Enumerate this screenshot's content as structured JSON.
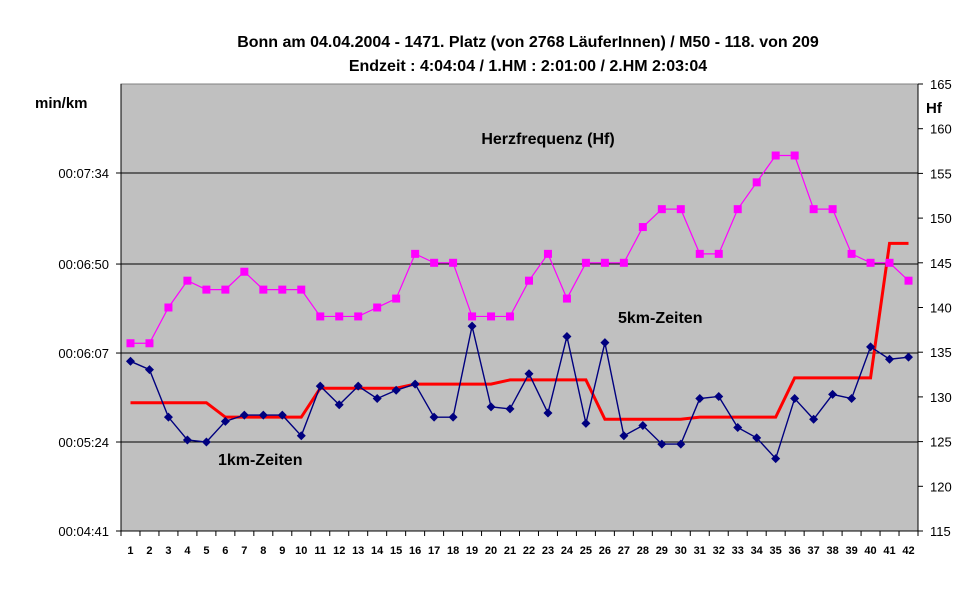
{
  "chart_data": {
    "type": "line",
    "title": "Bonn am 04.04.2004 - 1471. Platz (von 2768 LäuferInnen) / M50 - 118. von 209",
    "subtitle": "Endzeit : 4:04:04  / 1.HM : 2:01:00  / 2.HM  2:03:04",
    "ylabel": "min/km",
    "y2label": "Hf",
    "y_ticks": [
      "00:04:41",
      "00:05:24",
      "00:06:07",
      "00:06:50",
      "00:07:34"
    ],
    "y_tick_seconds": [
      281,
      324,
      367,
      410,
      454
    ],
    "ylim_seconds": [
      281,
      497
    ],
    "y2lim": [
      115,
      165
    ],
    "y2_ticks": [
      115,
      120,
      125,
      130,
      135,
      140,
      145,
      150,
      155,
      160,
      165
    ],
    "grid": "horizontal",
    "annotations": [
      "Herzfrequenz (Hf)",
      "5km-Zeiten",
      "1km-Zeiten"
    ],
    "x": [
      1,
      2,
      3,
      4,
      5,
      6,
      7,
      8,
      9,
      10,
      11,
      12,
      13,
      14,
      15,
      16,
      17,
      18,
      19,
      20,
      21,
      22,
      23,
      24,
      25,
      26,
      27,
      28,
      29,
      30,
      31,
      32,
      33,
      34,
      35,
      36,
      37,
      38,
      39,
      40,
      41,
      42
    ],
    "series": [
      {
        "axis": "left",
        "color": "#00007f",
        "marker": "diamond",
        "values_seconds": [
          363,
          359,
          336,
          325,
          324,
          334,
          337,
          337,
          337,
          327,
          351,
          342,
          351,
          345,
          349,
          352,
          336,
          336,
          380,
          341,
          340,
          357,
          338,
          375,
          333,
          372,
          327,
          332,
          323,
          323,
          345,
          346,
          331,
          326,
          316,
          345,
          335,
          347,
          345,
          370,
          364,
          365
        ]
      },
      {
        "axis": "right",
        "color": "#ff00ff",
        "marker": "square",
        "values": [
          136,
          136,
          140,
          143,
          142,
          142,
          144,
          142,
          142,
          142,
          139,
          139,
          139,
          140,
          141,
          146,
          145,
          145,
          139,
          139,
          139,
          143,
          146,
          141,
          145,
          145,
          145,
          149,
          151,
          151,
          146,
          146,
          151,
          154,
          157,
          157,
          151,
          151,
          146,
          145,
          145,
          143
        ]
      },
      {
        "axis": "left",
        "color": "#ff0000",
        "marker": "none",
        "step": true,
        "values_seconds": [
          343,
          343,
          343,
          343,
          343,
          336,
          336,
          336,
          336,
          336,
          350,
          350,
          350,
          350,
          350,
          352,
          352,
          352,
          352,
          352,
          354,
          354,
          354,
          354,
          354,
          335,
          335,
          335,
          335,
          335,
          336,
          336,
          336,
          336,
          336,
          355,
          355,
          355,
          355,
          355,
          420,
          420
        ]
      }
    ]
  }
}
